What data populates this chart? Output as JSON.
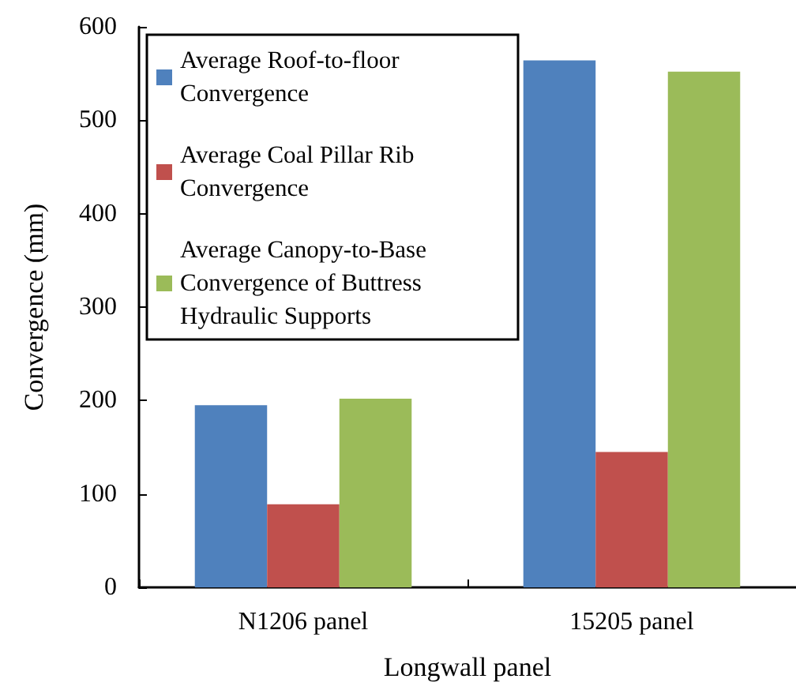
{
  "chart_data": {
    "type": "bar",
    "xlabel": "Longwall panel",
    "ylabel": "Convergence (mm)",
    "categories": [
      "N1206 panel",
      "15205 panel"
    ],
    "series": [
      {
        "name": "Average Roof-to-floor Convergence",
        "color": "#4f81bd",
        "values": [
          195,
          564
        ]
      },
      {
        "name": "Average Coal Pillar Rib Convergence",
        "color": "#c0504d",
        "values": [
          89,
          145
        ]
      },
      {
        "name": "Average Canopy-to-Base Convergence of Buttress Hydraulic Supports",
        "color": "#9bbb59",
        "values": [
          202,
          552
        ]
      }
    ],
    "ylim": [
      0,
      600
    ],
    "yticks": [
      0,
      100,
      200,
      300,
      400,
      500,
      600
    ],
    "grid": false,
    "legend": "top left"
  }
}
